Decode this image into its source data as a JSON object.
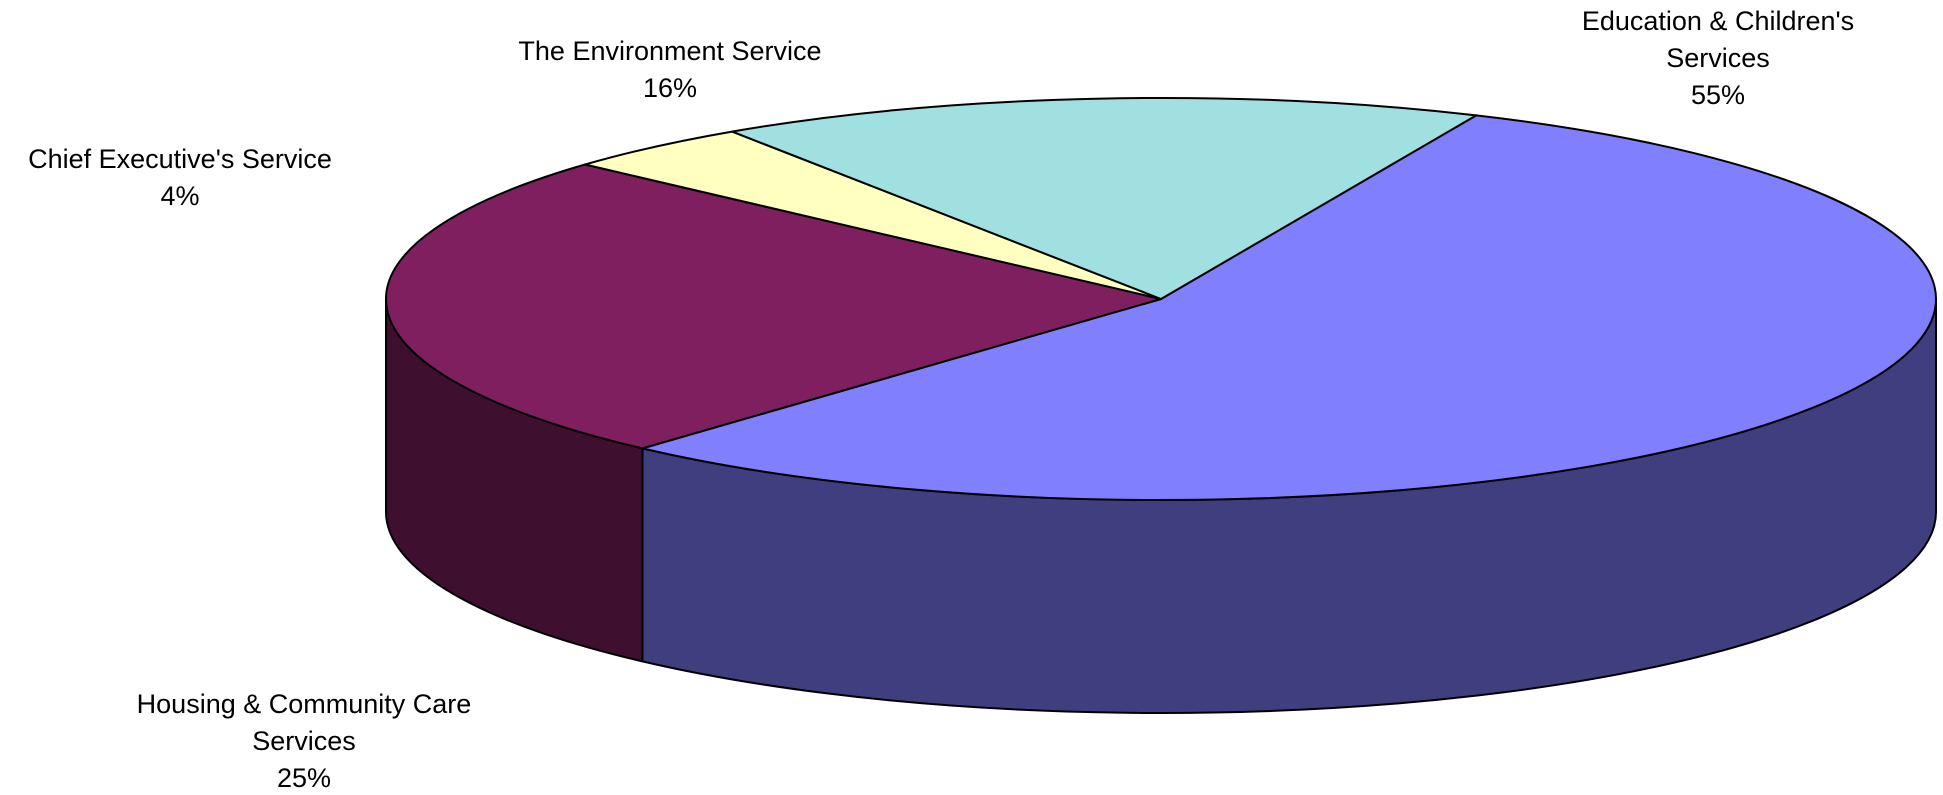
{
  "chart_data": {
    "type": "pie",
    "style": "3d",
    "title": "",
    "slices": [
      {
        "name": "Education & Children's Services",
        "label_lines": [
          "Education & Children's",
          "Services"
        ],
        "percent_label": "55%",
        "value": 55,
        "color": "#8080ff",
        "side_color": "#3f3f7f"
      },
      {
        "name": "Housing & Community Care Services",
        "label_lines": [
          "Housing & Community Care",
          "Services"
        ],
        "percent_label": "25%",
        "value": 25,
        "color": "#7f1f5f",
        "side_color": "#3f0f2f"
      },
      {
        "name": "Chief Executive's Service",
        "label_lines": [
          "Chief Executive's Service"
        ],
        "percent_label": "4%",
        "value": 4,
        "color": "#ffffc0",
        "side_color": "#7f7f60"
      },
      {
        "name": "The Environment Service",
        "label_lines": [
          "The Environment Service"
        ],
        "percent_label": "16%",
        "value": 16,
        "color": "#a0e0e0",
        "side_color": "#507070"
      }
    ],
    "legend": "none",
    "data_labels": "outside"
  }
}
